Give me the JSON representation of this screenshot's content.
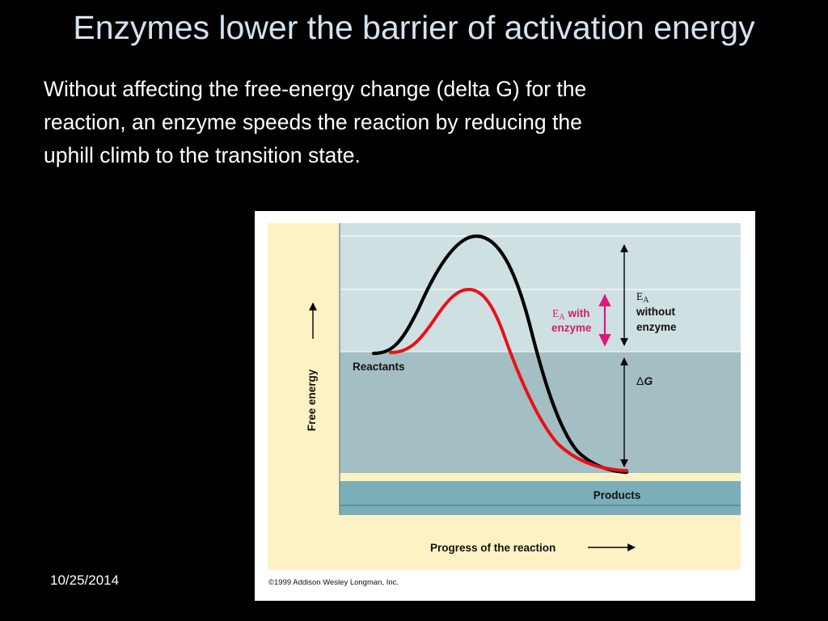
{
  "slide": {
    "title": "Enzymes lower the barrier of activation energy",
    "body_lines": [
      "Without affecting the free-energy change (delta G) for the",
      "reaction, an enzyme speeds the reaction by reducing the",
      "uphill climb to the transition state."
    ],
    "date": "10/25/2014"
  },
  "figure": {
    "y_axis_label": "Free energy",
    "x_axis_label": "Progress of the reaction",
    "reactants_label": "Reactants",
    "products_label": "Products",
    "ea_with_enzyme": {
      "e": "E",
      "sub": "A",
      "line1": "with",
      "line2": "enzyme"
    },
    "ea_without_enzyme": {
      "e": "E",
      "sub": "A",
      "line1": "without",
      "line2": "enzyme"
    },
    "delta_g": {
      "delta": "Δ",
      "g": "G"
    },
    "copyright": "©1999 Addison Wesley Longman, Inc.",
    "colors": {
      "background_cream": "#fdf2c4",
      "upper_band": "#cfe0e2",
      "middle_band": "#a4bfc3",
      "products_band": "#7aaeb9",
      "curve_without_enzyme": "#000000",
      "curve_with_enzyme": "#e8111b",
      "ea_with_enzyme_arrow": "#e0177a",
      "ea_with_enzyme_text": "#d41a6e"
    }
  }
}
